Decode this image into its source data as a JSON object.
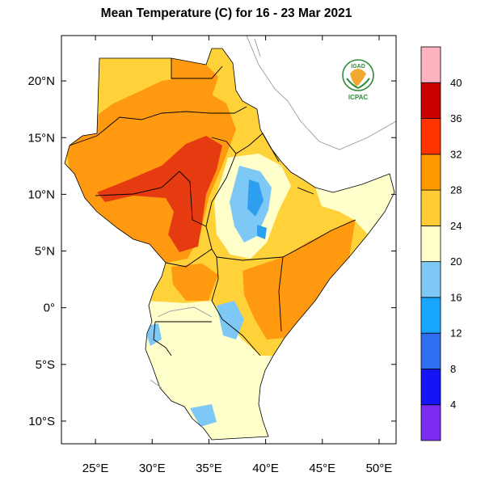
{
  "title": "Mean Temperature (C) for 16 - 23 Mar 2021",
  "map": {
    "lon_range": [
      22,
      51.5
    ],
    "lat_range": [
      -12,
      24
    ],
    "lat_ticks": [
      {
        "value": 20,
        "label": "20°N"
      },
      {
        "value": 15,
        "label": "15°N"
      },
      {
        "value": 10,
        "label": "10°N"
      },
      {
        "value": 5,
        "label": "5°N"
      },
      {
        "value": 0,
        "label": "0°"
      },
      {
        "value": -5,
        "label": "5°S"
      },
      {
        "value": -10,
        "label": "10°S"
      }
    ],
    "lon_ticks": [
      {
        "value": 25,
        "label": "25°E"
      },
      {
        "value": 30,
        "label": "30°E"
      },
      {
        "value": 35,
        "label": "35°E"
      },
      {
        "value": 40,
        "label": "40°E"
      },
      {
        "value": 45,
        "label": "45°E"
      },
      {
        "value": 50,
        "label": "50°E"
      }
    ]
  },
  "logo": {
    "top_text": "IGAD",
    "bottom_text": "ICPAC"
  },
  "colorbar": {
    "unit": "C",
    "labels": [
      "4",
      "8",
      "12",
      "16",
      "20",
      "24",
      "28",
      "32",
      "36",
      "40"
    ],
    "colors": [
      "#7b2cf0",
      "#1414f5",
      "#2e6ef0",
      "#19a6ff",
      "#7ec8f5",
      "#ffffcc",
      "#ffcc33",
      "#ff9900",
      "#ff3300",
      "#cc0000",
      "#ffb3c1"
    ]
  },
  "colors": {
    "very_hot": "#e63a10",
    "hot": "#ff9a10",
    "warm": "#ffd23a",
    "mild": "#ffffcc",
    "cool": "#7ec8f5",
    "cold": "#2e9ff0",
    "border": "#000000",
    "coast": "#999999"
  }
}
